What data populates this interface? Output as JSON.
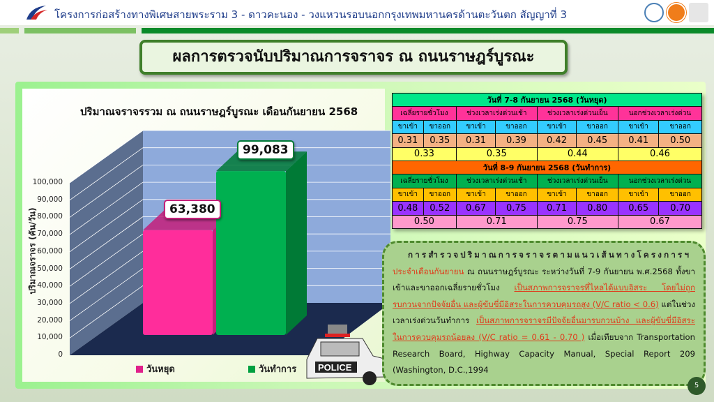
{
  "header": {
    "title": "โครงการก่อสร้างทางพิเศษสายพระราม 3 - ดาวคะนอง - วงแหวนรอบนอกกรุงเทพมหานครด้านตะวันตก สัญญาที่ 3",
    "logo_text": "EXAT"
  },
  "slide_title": "ผลการตรวจนับปริมาณการจราจร ณ ถนนราษฎร์บูรณะ",
  "chart_data": {
    "type": "bar",
    "title": "ปริมาณจราจรรวม ณ ถนนราษฎร์บูรณะ เดือนกันยายน 2568",
    "ylabel": "ปริมาณจราจร (คัน/วัน)",
    "xlabel": "",
    "ylim": [
      0,
      100000
    ],
    "yticks": [
      "0",
      "10,000",
      "20,000",
      "30,000",
      "40,000",
      "50,000",
      "60,000",
      "70,000",
      "80,000",
      "90,000",
      "100,000"
    ],
    "categories": [
      "วันหยุด",
      "วันทำการ"
    ],
    "values": [
      63380,
      99083
    ],
    "data_labels": [
      "63,380",
      "99,083"
    ],
    "colors": [
      "#ff2d9b",
      "#00b050"
    ],
    "legend": [
      "วันหยุด",
      "วันทำการ"
    ],
    "legend_position": "bottom",
    "grid": true,
    "style": "3d"
  },
  "vc_table": {
    "sections": [
      {
        "heading": "วันที่ 7-8 กันยายน 2568 (วันหยุด)",
        "heading_color": "#00e88a",
        "cat_color": "#ff3399",
        "dir_color": "#33ccff",
        "val_color": "#f4b183",
        "avg_color": "#ffff66",
        "categories": [
          "เฉลี่ยรายชั่วโมง",
          "ช่วงเวลาเร่งด่วนเช้า",
          "ช่วงเวลาเร่งด่วนเย็น",
          "นอกช่วงเวลาเร่งด่วน"
        ],
        "directions": [
          "ขาเข้า",
          "ขาออก",
          "ขาเข้า",
          "ขาออก",
          "ขาเข้า",
          "ขาออก",
          "ขาเข้า",
          "ขาออก"
        ],
        "values": [
          "0.31",
          "0.35",
          "0.31",
          "0.39",
          "0.42",
          "0.45",
          "0.41",
          "0.50"
        ],
        "averages": [
          "0.33",
          "0.35",
          "0.44",
          "0.46"
        ]
      },
      {
        "heading": "วันที่ 8-9 กันยายน 2568 (วันทำการ)",
        "heading_color": "#ff6600",
        "cat_color": "#00b050",
        "dir_color": "#ffc000",
        "val_color": "#9933ff",
        "avg_color": "#ff99cc",
        "categories": [
          "เฉลี่ยรายชั่วโมง",
          "ช่วงเวลาเร่งด่วนเช้า",
          "ช่วงเวลาเร่งด่วนเย็น",
          "นอกช่วงเวลาเร่งด่วน"
        ],
        "directions": [
          "ขาเข้า",
          "ขาออก",
          "ขาเข้า",
          "ขาออก",
          "ขาเข้า",
          "ขาออก",
          "ขาเข้า",
          "ขาออก"
        ],
        "values": [
          "0.48",
          "0.52",
          "0.67",
          "0.75",
          "0.71",
          "0.80",
          "0.65",
          "0.70"
        ],
        "averages": [
          "0.50",
          "0.71",
          "0.75",
          "0.67"
        ]
      }
    ]
  },
  "summary": {
    "p1": "การสำรวจปริมาณการจราจรตามแนวเส้นทางโครงการฯ",
    "p2_red": "ประจำเดือนกันยายน",
    "p2": " ณ ถนนราษฎร์บูรณะ ระหว่างวันที่ 7-9 กันยายน พ.ศ.2568 ทั้งขาเข้าและขาออกเฉลี่ยรายชั่วโมง ",
    "p3_redu": "เป็นสภาพการจราจรที่ไหลได้แบบอิสระ โดยไม่ถูกรบกวนจากปัจจัยอื่น และผู้ขับขี่มีอิสระในการควบคุมรถสูง (V/C ratio < 0.6)",
    "p4": " แต่ในช่วงเวลาเร่งด่วนวันทำการ ",
    "p5_redu": "เป็นสภาพการจราจรมีปัจจัยอื่นมารบกวนบ้าง และผู้ขับขี่มีอิสระในการควบคุมรถน้อยลง (V/C ratio = 0.61 - 0.70 )",
    "p6": " เมื่อเทียบจาก Transportation Research Board, Highway Capacity Manual, Special Report 209 (Washington, D.C.,1994"
  },
  "police_car_text": "POLICE",
  "page_number": "5"
}
